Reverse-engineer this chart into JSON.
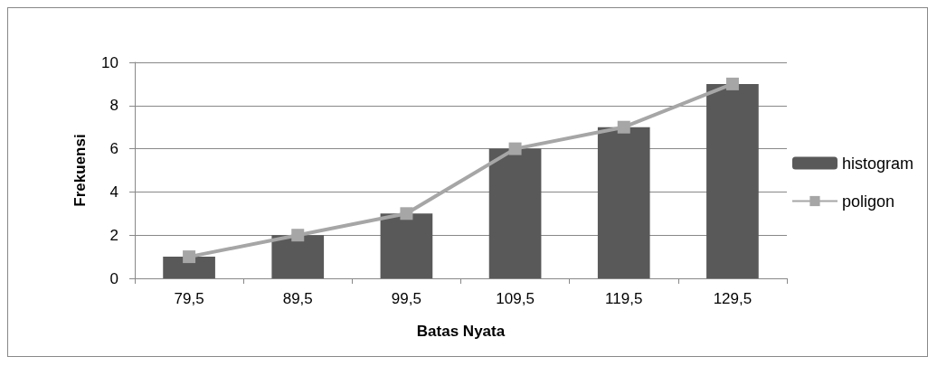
{
  "chart_data": {
    "type": "bar",
    "xlabel": "Batas Nyata",
    "ylabel": "Frekuensi",
    "categories": [
      "79,5",
      "89,5",
      "99,5",
      "109,5",
      "119,5",
      "129,5"
    ],
    "series": [
      {
        "name": "histogram",
        "color": "#595959",
        "values": [
          1,
          2,
          3,
          6,
          7,
          9
        ]
      },
      {
        "name": "poligon",
        "type": "line",
        "color": "#a6a6a6",
        "values": [
          1,
          2,
          3,
          6,
          7,
          9
        ]
      }
    ],
    "ylim": [
      0,
      10
    ],
    "yticks": [
      0,
      2,
      4,
      6,
      8,
      10
    ],
    "grid": "y",
    "legend": "right",
    "marker": "square",
    "line_style": "solid"
  }
}
